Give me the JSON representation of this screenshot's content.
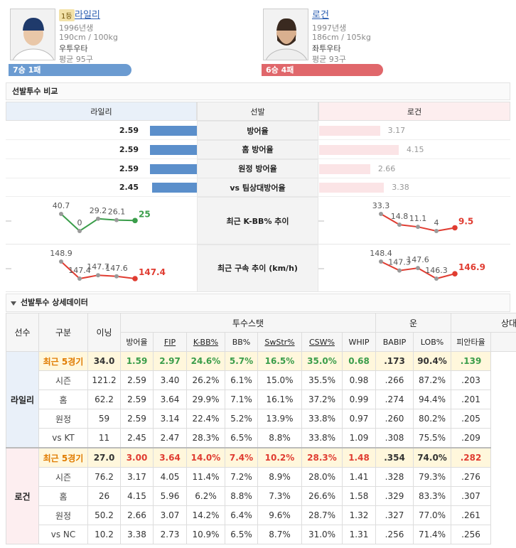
{
  "players": [
    {
      "rank": "1등",
      "name": "라일리",
      "born": "1996년생",
      "body": "190cm / 100kg",
      "hand": "우투우타",
      "pitches": "평균 95구",
      "record": "7승 1패"
    },
    {
      "name": "로건",
      "born": "1997년생",
      "body": "186cm / 105kg",
      "hand": "좌투우타",
      "pitches": "평균 93구",
      "record": "6승 4패"
    }
  ],
  "comparison": {
    "title": "선발투수 비교",
    "headers": [
      "라일리",
      "선발",
      "로건"
    ],
    "rows": [
      {
        "label": "방어율",
        "left": 2.59,
        "right": 3.17
      },
      {
        "label": "홈 방어율",
        "left": 2.59,
        "right": 4.15
      },
      {
        "label": "원정 방어율",
        "left": 2.59,
        "right": 2.66
      },
      {
        "label": "vs 팀상대방어율",
        "left": 2.45,
        "right": 3.38
      }
    ],
    "trends": [
      {
        "label": "최근 K-BB% 추이",
        "left": [
          40.7,
          0,
          29.2,
          26.1,
          25
        ],
        "right": [
          33.3,
          14.8,
          11.1,
          4,
          9.5
        ],
        "left_color": "#3a9d4a",
        "right_color": "#e03c31"
      },
      {
        "label": "최근 구속 추이 (km/h)",
        "left": [
          148.9,
          147.4,
          147.7,
          147.6,
          147.4
        ],
        "right": [
          148.4,
          147.3,
          147.6,
          146.3,
          146.9
        ],
        "left_color": "#e03c31",
        "right_color": "#e03c31"
      }
    ]
  },
  "detail": {
    "title": "선발투수 상세데이터",
    "fixed_headers": [
      "선수",
      "구분",
      "이닝"
    ],
    "groups": [
      {
        "name": "투수스탯",
        "columns": [
          "방어율",
          "FIP",
          "K-BB%",
          "BB%",
          "SwStr%",
          "CSW%",
          "WHIP"
        ]
      },
      {
        "name": "운",
        "columns": [
          "BABIP",
          "LOB%"
        ]
      },
      {
        "name": "상대",
        "columns": [
          "피안타율"
        ]
      }
    ],
    "players": [
      {
        "name": "라일리",
        "highlight_color": "#3a9d4a",
        "rows": [
          {
            "label": "최근 5경기",
            "values": [
              "34.0",
              "1.59",
              "2.97",
              "24.6%",
              "5.7%",
              "16.5%",
              "35.0%",
              "0.68",
              ".173",
              "90.4%",
              ".139"
            ]
          },
          {
            "label": "시즌",
            "values": [
              "121.2",
              "2.59",
              "3.40",
              "26.2%",
              "6.1%",
              "15.0%",
              "35.5%",
              "0.98",
              ".266",
              "87.2%",
              ".203"
            ]
          },
          {
            "label": "홈",
            "values": [
              "62.2",
              "2.59",
              "3.64",
              "29.9%",
              "7.1%",
              "16.1%",
              "37.2%",
              "0.99",
              ".274",
              "94.4%",
              ".201"
            ]
          },
          {
            "label": "원정",
            "values": [
              "59",
              "2.59",
              "3.14",
              "22.4%",
              "5.2%",
              "13.9%",
              "33.8%",
              "0.97",
              ".260",
              "80.2%",
              ".205"
            ]
          },
          {
            "label": "vs KT",
            "values": [
              "11",
              "2.45",
              "2.47",
              "28.3%",
              "6.5%",
              "8.8%",
              "33.8%",
              "1.09",
              ".308",
              "75.5%",
              ".209"
            ]
          }
        ]
      },
      {
        "name": "로건",
        "highlight_color": "#e03c31",
        "rows": [
          {
            "label": "최근 5경기",
            "values": [
              "27.0",
              "3.00",
              "3.64",
              "14.0%",
              "7.4%",
              "10.2%",
              "28.3%",
              "1.48",
              ".354",
              "74.0%",
              ".282"
            ]
          },
          {
            "label": "시즌",
            "values": [
              "76.2",
              "3.17",
              "4.05",
              "11.4%",
              "7.2%",
              "8.9%",
              "28.0%",
              "1.41",
              ".328",
              "79.3%",
              ".276"
            ]
          },
          {
            "label": "홈",
            "values": [
              "26",
              "4.15",
              "5.96",
              "6.2%",
              "8.8%",
              "7.3%",
              "26.6%",
              "1.58",
              ".329",
              "83.3%",
              ".307"
            ]
          },
          {
            "label": "원정",
            "values": [
              "50.2",
              "2.66",
              "3.07",
              "14.2%",
              "6.4%",
              "9.6%",
              "28.7%",
              "1.32",
              ".327",
              "77.0%",
              ".261"
            ]
          },
          {
            "label": "vs NC",
            "values": [
              "10.2",
              "3.38",
              "2.73",
              "10.9%",
              "6.5%",
              "8.7%",
              "31.0%",
              "1.31",
              ".256",
              "71.4%",
              ".256"
            ]
          }
        ]
      }
    ]
  }
}
